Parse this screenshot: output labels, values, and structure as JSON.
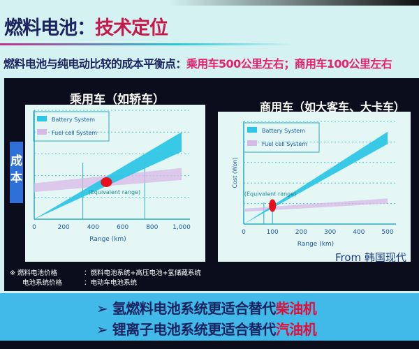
{
  "header": {
    "title_prefix": "燃料电池：",
    "title_highlight": "技术定位",
    "subtitle_prefix": "燃料电池与纯电动比较的成本平衡点：",
    "subtitle_highlight": "乘用车500公里左右；商用车100公里左右"
  },
  "cost_label": "成本",
  "source": "From 韩国现代",
  "notes": [
    {
      "label": "※ 燃料电池价格",
      "value": "：燃料电池系统+高压电池+氢储藏系统"
    },
    {
      "label": "电池系统价格",
      "value": "：电动车电池系统"
    }
  ],
  "conclusions": [
    {
      "bullet": "➢",
      "text": "氢燃料电池系统更适合替代",
      "highlight": "柴油机"
    },
    {
      "bullet": "➢",
      "text": "锂离子电池系统更适合替代",
      "highlight": "汽油机"
    }
  ],
  "colors": {
    "battery": "#2ec6e6",
    "fuel_cell": "#d8b8e6",
    "marker": "#e8101a",
    "title_accent": "#c8184a",
    "conclusion_bg": "#41b9e9"
  },
  "chart_data": [
    {
      "type": "area",
      "title": "乘用车（如轿车）",
      "xlabel": "Range (km)",
      "ylabel": "",
      "xlim": [
        0,
        1000
      ],
      "ylim": [
        0,
        100
      ],
      "xticks": [
        "0",
        "200",
        "400",
        "600",
        "800",
        "1,000"
      ],
      "xtick_values": [
        0,
        200,
        400,
        600,
        800,
        1000
      ],
      "grid": true,
      "legend": "top-left",
      "series": [
        {
          "name": "Battery System",
          "x": [
            0,
            1000
          ],
          "lower": [
            0,
            62
          ],
          "upper": [
            0,
            80
          ]
        },
        {
          "name": "Fuel cell System",
          "x": [
            0,
            1000
          ],
          "lower": [
            25,
            36
          ],
          "upper": [
            33,
            47
          ]
        }
      ],
      "equivalent_range": {
        "label": "(Equivalent range)",
        "bounds": [
          330,
          750
        ],
        "point": [
          490,
          34
        ]
      }
    },
    {
      "type": "area",
      "title": "商用车（如大客车、大卡车）",
      "xlabel": "Range (km)",
      "ylabel": "Cost (Won)",
      "xlim": [
        0,
        500
      ],
      "ylim": [
        0,
        100
      ],
      "xticks": [
        "0",
        "100",
        "200",
        "300",
        "400",
        "500"
      ],
      "xtick_values": [
        0,
        100,
        200,
        300,
        400,
        500
      ],
      "grid": true,
      "legend": "top-left",
      "series": [
        {
          "name": "Battery System",
          "x": [
            0,
            500
          ],
          "lower": [
            0,
            78
          ],
          "upper": [
            0,
            90
          ]
        },
        {
          "name": "Fuel cell System",
          "x": [
            0,
            500
          ],
          "lower": [
            12,
            20
          ],
          "upper": [
            15,
            25
          ]
        }
      ],
      "equivalent_range": {
        "label": "(Equivalent range)",
        "bounds": [
          70,
          100
        ],
        "point": [
          100,
          18
        ]
      }
    }
  ]
}
